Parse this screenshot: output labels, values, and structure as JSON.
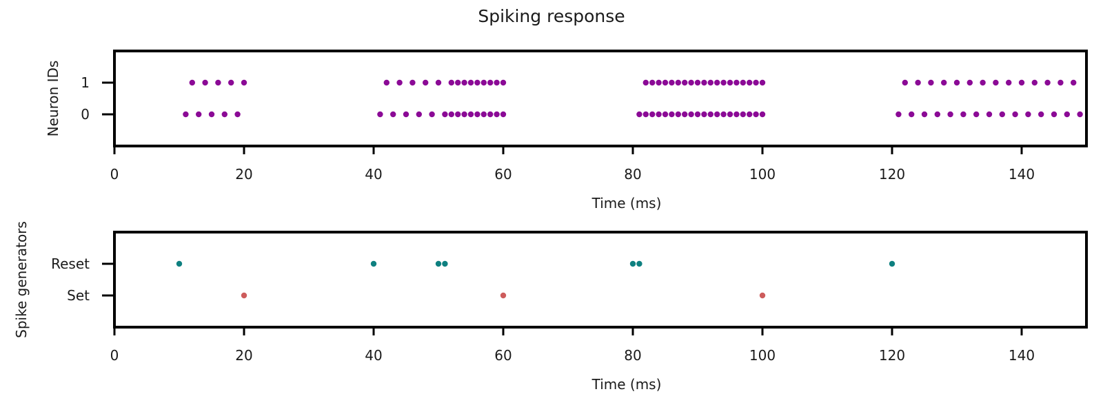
{
  "title": "Spiking response",
  "chart_data": [
    {
      "type": "scatter",
      "id": "neurons",
      "xlabel": "Time (ms)",
      "ylabel": "Neuron IDs",
      "xlim": [
        0,
        150
      ],
      "ylim": [
        -1,
        2
      ],
      "xticks": [
        0,
        20,
        40,
        60,
        80,
        100,
        120,
        140
      ],
      "ytick_labels": [
        "0",
        "1"
      ],
      "color": "#8b0a96",
      "series": [
        {
          "y": 0,
          "x": [
            11,
            13,
            15,
            17,
            19,
            41,
            43,
            45,
            47,
            49,
            51,
            52,
            53,
            54,
            55,
            56,
            57,
            58,
            59,
            60,
            81,
            82,
            83,
            84,
            85,
            86,
            87,
            88,
            89,
            90,
            91,
            92,
            93,
            94,
            95,
            96,
            97,
            98,
            99,
            100,
            121,
            123,
            125,
            127,
            129,
            131,
            133,
            135,
            137,
            139,
            141,
            143,
            145,
            147,
            149
          ]
        },
        {
          "y": 1,
          "x": [
            12,
            14,
            16,
            18,
            20,
            42,
            44,
            46,
            48,
            50,
            52,
            53,
            54,
            55,
            56,
            57,
            58,
            59,
            60,
            82,
            83,
            84,
            85,
            86,
            87,
            88,
            89,
            90,
            91,
            92,
            93,
            94,
            95,
            96,
            97,
            98,
            99,
            100,
            122,
            124,
            126,
            128,
            130,
            132,
            134,
            136,
            138,
            140,
            142,
            144,
            146,
            148
          ]
        }
      ]
    },
    {
      "type": "scatter",
      "id": "generators",
      "xlabel": "Time (ms)",
      "ylabel": "Spike generators",
      "xlim": [
        0,
        150
      ],
      "ylim": [
        -1,
        2
      ],
      "xticks": [
        0,
        20,
        40,
        60,
        80,
        100,
        120,
        140
      ],
      "ytick_labels": [
        "Set",
        "Reset"
      ],
      "series": [
        {
          "y": 0,
          "color": "#cd5c5c",
          "x": [
            20,
            60,
            100
          ]
        },
        {
          "y": 1,
          "color": "#0e8080",
          "x": [
            10,
            40,
            50,
            51,
            80,
            81,
            120
          ]
        }
      ]
    }
  ]
}
